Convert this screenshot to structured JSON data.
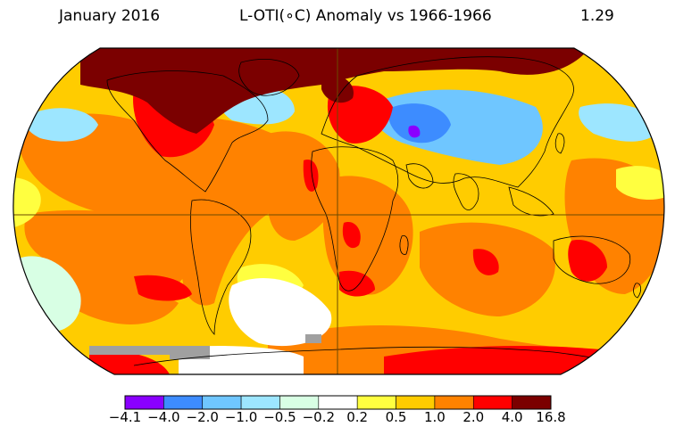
{
  "header": {
    "date": "January 2016",
    "title": "L-OTI(∘C) Anomaly vs 1966-1966",
    "global_mean": "1.29"
  },
  "colorbar": {
    "ticks": [
      "−4.1",
      "−4.0",
      "−2.0",
      "−1.0",
      "−0.5",
      "−0.2",
      "0.2",
      "0.5",
      "1.0",
      "2.0",
      "4.0",
      "16.8"
    ],
    "colors": [
      "#8a00ff",
      "#3d8cff",
      "#6fc6ff",
      "#9de6ff",
      "#d8ffe4",
      "#ffffff",
      "#ffff40",
      "#ffcc00",
      "#ff8200",
      "#ff0000",
      "#7b0000"
    ]
  },
  "map": {
    "projection": "robinson",
    "missing_color": "#a0a0a0",
    "coast_color": "#000000"
  }
}
